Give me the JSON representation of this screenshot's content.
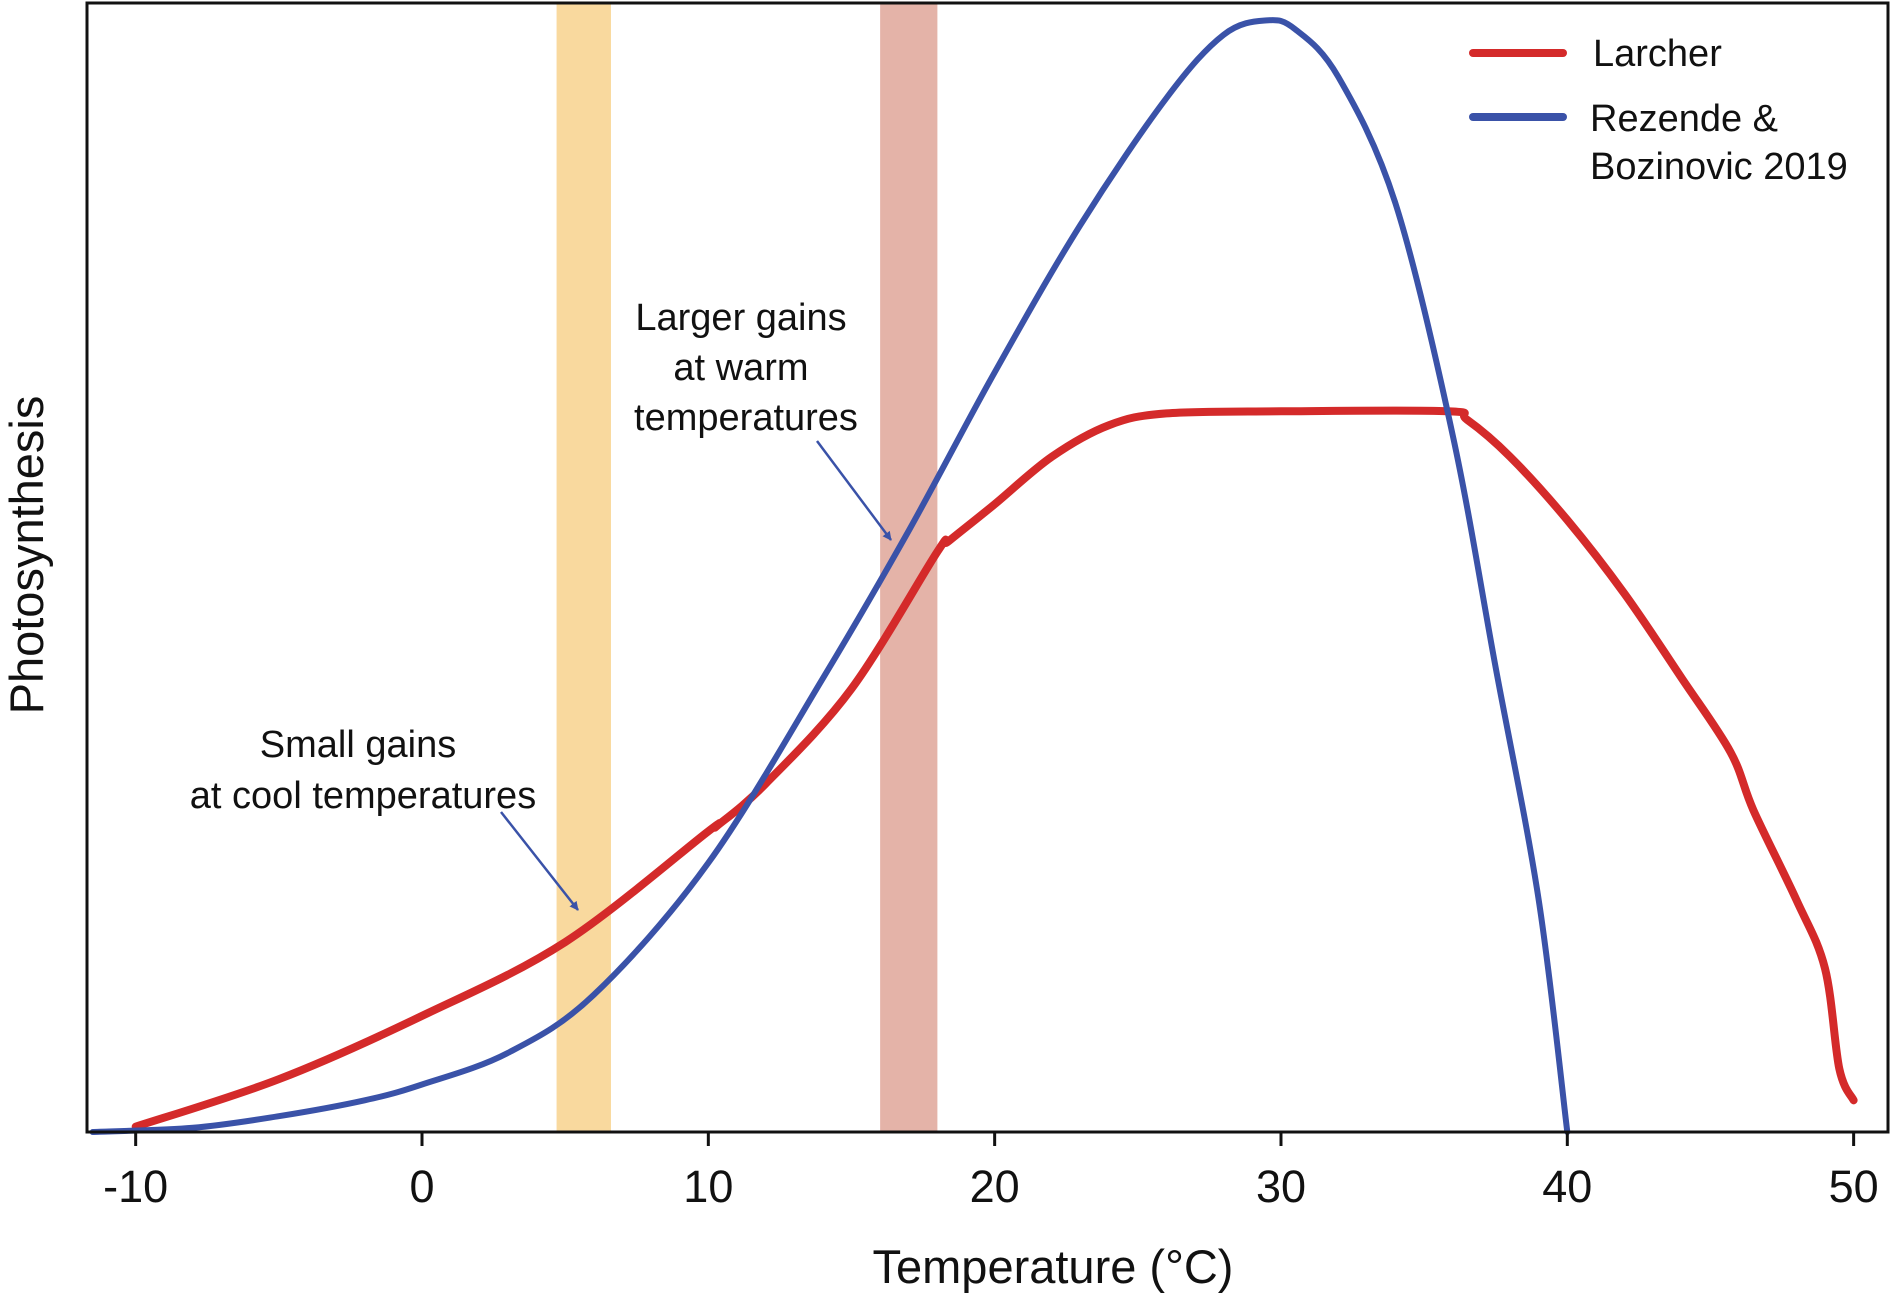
{
  "chart_data": {
    "type": "line",
    "title": "",
    "xlabel": "Temperature (°C)",
    "ylabel": "Photosynthesis",
    "xlim": [
      -11.7,
      51.2
    ],
    "ylim": [
      0,
      1.07
    ],
    "x_ticks": [
      -10,
      0,
      10,
      20,
      30,
      40,
      50
    ],
    "x_tick_labels": [
      "-10",
      "0",
      "10",
      "20",
      "30",
      "40",
      "50"
    ],
    "y_ticks_shown": false,
    "grid": false,
    "legend_position": "top-right",
    "series": [
      {
        "name": "Larcher",
        "color": "#d42a2a",
        "x": [
          -10,
          -5,
          0,
          5,
          10,
          10.3,
          12,
          15,
          18,
          18.4,
          20,
          22,
          24,
          26,
          30,
          35.8,
          36.5,
          38,
          40,
          42,
          44,
          45.7,
          46.5,
          48,
          49,
          49.5,
          50
        ],
        "y": [
          0.005,
          0.05,
          0.11,
          0.18,
          0.285,
          0.29,
          0.33,
          0.42,
          0.55,
          0.56,
          0.595,
          0.64,
          0.67,
          0.681,
          0.683,
          0.683,
          0.675,
          0.64,
          0.58,
          0.51,
          0.43,
          0.36,
          0.305,
          0.22,
          0.155,
          0.06,
          0.03
        ]
      },
      {
        "name": "Rezende & Bozinovic 2019",
        "color": "#3a52a8",
        "x": [
          -11.5,
          -8,
          -5,
          -2,
          0,
          3,
          6,
          10,
          14,
          17,
          20,
          23,
          26,
          28,
          29.5,
          30.5,
          32,
          34,
          36,
          37.5,
          39,
          40
        ],
        "y": [
          0.0,
          0.004,
          0.015,
          0.03,
          0.045,
          0.075,
          0.13,
          0.255,
          0.43,
          0.57,
          0.72,
          0.86,
          0.98,
          1.04,
          1.0535,
          1.045,
          1.0,
          0.88,
          0.66,
          0.44,
          0.22,
          0.0
        ]
      }
    ],
    "bands": [
      {
        "name": "cool",
        "x_range": [
          4.7,
          6.6
        ],
        "color": "#f9d99e"
      },
      {
        "name": "warm",
        "x_range": [
          16,
          18
        ],
        "color": "#e4b3a8"
      }
    ],
    "annotations": [
      {
        "lines": [
          "Small gains",
          "at cool temperatures"
        ],
        "arrow_to_x": 5.6
      },
      {
        "lines": [
          "Larger gains",
          "at warm",
          "temperatures"
        ],
        "arrow_to_x": 16.7
      }
    ]
  }
}
